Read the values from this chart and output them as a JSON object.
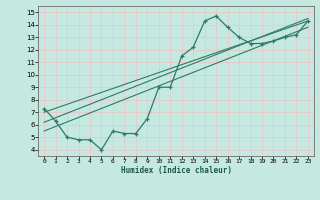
{
  "title": "",
  "xlabel": "Humidex (Indice chaleur)",
  "xlim": [
    -0.5,
    23.5
  ],
  "ylim": [
    3.5,
    15.5
  ],
  "xticks": [
    0,
    1,
    2,
    3,
    4,
    5,
    6,
    7,
    8,
    9,
    10,
    11,
    12,
    13,
    14,
    15,
    16,
    17,
    18,
    19,
    20,
    21,
    22,
    23
  ],
  "yticks": [
    4,
    5,
    6,
    7,
    8,
    9,
    10,
    11,
    12,
    13,
    14,
    15
  ],
  "bg_color": "#c5e8e0",
  "line_color": "#2a7b6a",
  "grid_color": "#e8c8c8",
  "data_x": [
    0,
    1,
    2,
    3,
    4,
    5,
    6,
    7,
    8,
    9,
    10,
    11,
    12,
    13,
    14,
    15,
    16,
    17,
    18,
    19,
    20,
    21,
    22,
    23
  ],
  "data_y": [
    7.3,
    6.3,
    5.0,
    4.8,
    4.8,
    4.0,
    5.5,
    5.3,
    5.3,
    6.5,
    9.0,
    9.0,
    11.5,
    12.2,
    14.3,
    14.7,
    13.8,
    13.0,
    12.5,
    12.5,
    12.7,
    13.0,
    13.2,
    14.3
  ],
  "trend1_x": [
    0,
    23
  ],
  "trend1_y": [
    7.0,
    14.3
  ],
  "trend2_x": [
    0,
    23
  ],
  "trend2_y": [
    6.2,
    14.5
  ],
  "trend3_x": [
    0,
    23
  ],
  "trend3_y": [
    5.5,
    13.8
  ]
}
